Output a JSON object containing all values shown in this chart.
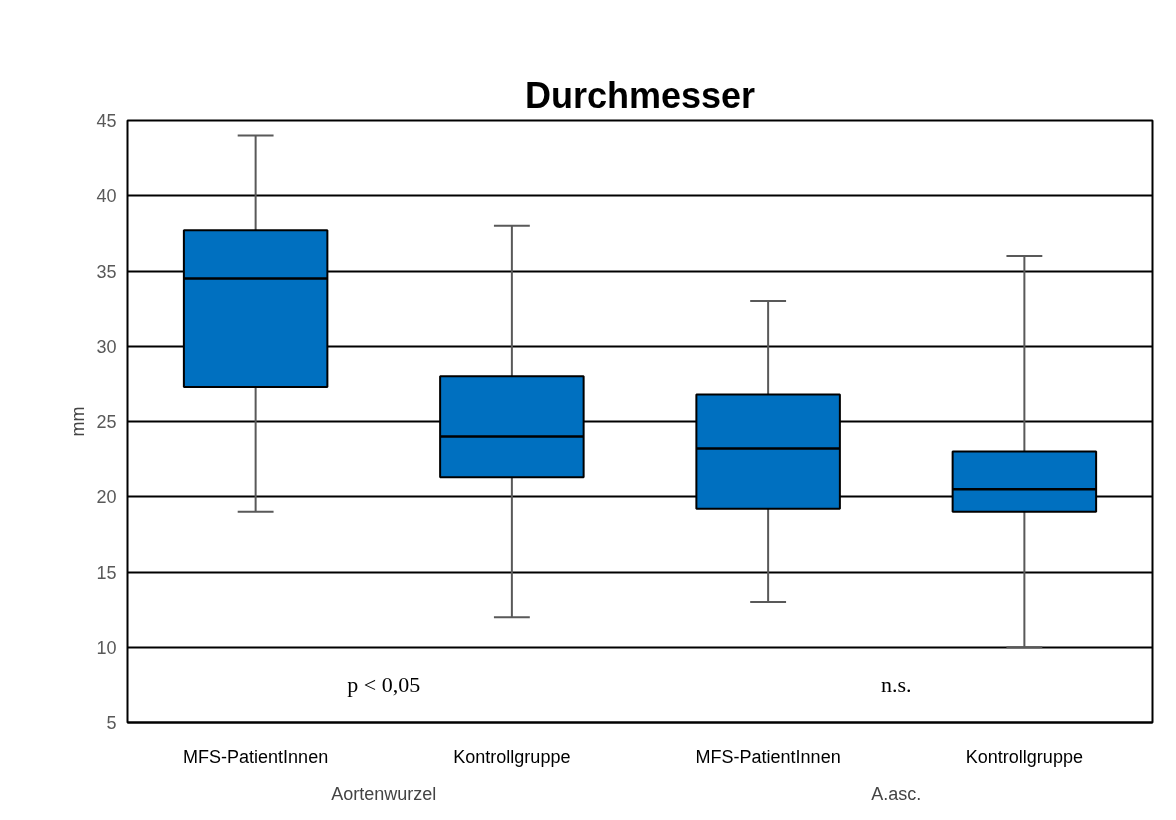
{
  "chart_data": {
    "type": "box",
    "title": "Durchmesser",
    "ylabel": "mm",
    "categories": [
      "MFS-PatientInnen",
      "Kontrollgruppe",
      "MFS-PatientInnen",
      "Kontrollgruppe"
    ],
    "boxes": [
      {
        "low": 19.0,
        "q1": 27.3,
        "median": 34.5,
        "q3": 37.7,
        "high": 44.0
      },
      {
        "low": 12.0,
        "q1": 21.3,
        "median": 24.0,
        "q3": 28.0,
        "high": 38.0
      },
      {
        "low": 13.0,
        "q1": 19.2,
        "median": 23.2,
        "q3": 26.8,
        "high": 33.0
      },
      {
        "low": 10.0,
        "q1": 19.0,
        "median": 20.5,
        "q3": 23.0,
        "high": 36.0
      }
    ],
    "color": "#0070c0",
    "ylim": [
      5,
      45
    ],
    "yticks": [
      5,
      10,
      15,
      20,
      25,
      30,
      35,
      40,
      45
    ],
    "grid": "y",
    "annotations": [
      "p < 0,05",
      "n.s.",
      "Aortenwurzel",
      "A.asc."
    ]
  }
}
